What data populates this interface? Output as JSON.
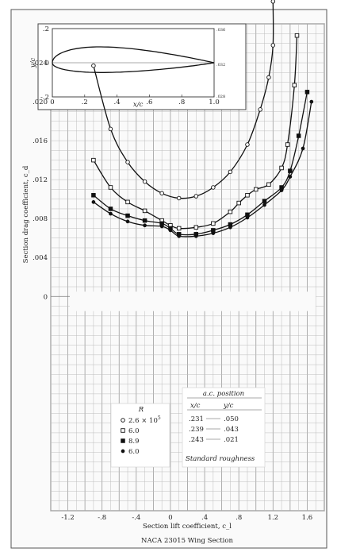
{
  "chart_data": {
    "type": "line",
    "title": "NACA 23015 Wing Section",
    "xlabel": "Section lift coefficient, c_l",
    "ylabel": "Section drag coefficient, c_d",
    "xlim": [
      -1.4,
      1.8
    ],
    "ylim": [
      -0.022,
      0.028
    ],
    "x_ticks": [
      "-1.2",
      "-.8",
      "-.4",
      "0",
      ".4",
      ".8",
      "1.2",
      "1.6"
    ],
    "x_tick_values": [
      -1.2,
      -0.8,
      -0.4,
      0,
      0.4,
      0.8,
      1.2,
      1.6
    ],
    "y_ticks": [
      ".024",
      ".020",
      ".016",
      ".012",
      ".008",
      ".004",
      "0"
    ],
    "y_tick_values": [
      0.024,
      0.02,
      0.016,
      0.012,
      0.008,
      0.004,
      0
    ],
    "grid": true,
    "series": [
      {
        "name": "2.6 × 10^5",
        "marker": "hollow-circle",
        "points": [
          [
            -0.9,
            0.0237
          ],
          [
            -0.7,
            0.0172
          ],
          [
            -0.5,
            0.0138
          ],
          [
            -0.3,
            0.0118
          ],
          [
            -0.1,
            0.0106
          ],
          [
            0.1,
            0.0101
          ],
          [
            0.3,
            0.0103
          ],
          [
            0.5,
            0.0112
          ],
          [
            0.7,
            0.0128
          ],
          [
            0.9,
            0.0156
          ],
          [
            1.05,
            0.0192
          ],
          [
            1.15,
            0.0225
          ],
          [
            1.2,
            0.0258
          ],
          [
            1.2,
            0.0303
          ]
        ],
        "marker_color": "#333"
      },
      {
        "name": "6.0",
        "marker": "hollow-square",
        "points": [
          [
            -0.9,
            0.014
          ],
          [
            -0.7,
            0.0112
          ],
          [
            -0.5,
            0.0097
          ],
          [
            -0.3,
            0.0088
          ],
          [
            -0.1,
            0.0078
          ],
          [
            0.0,
            0.0073
          ],
          [
            0.1,
            0.007
          ],
          [
            0.3,
            0.0071
          ],
          [
            0.5,
            0.0075
          ],
          [
            0.7,
            0.0087
          ],
          [
            0.8,
            0.0096
          ],
          [
            0.9,
            0.0104
          ],
          [
            1.0,
            0.011
          ],
          [
            1.15,
            0.0115
          ],
          [
            1.3,
            0.0132
          ],
          [
            1.37,
            0.0156
          ],
          [
            1.45,
            0.0217
          ],
          [
            1.48,
            0.0268
          ]
        ],
        "marker_color": "#333"
      },
      {
        "name": "8.9",
        "marker": "filled-square",
        "points": [
          [
            -0.9,
            0.0104
          ],
          [
            -0.7,
            0.009
          ],
          [
            -0.5,
            0.0083
          ],
          [
            -0.3,
            0.0078
          ],
          [
            -0.1,
            0.0075
          ],
          [
            0.0,
            0.007
          ],
          [
            0.1,
            0.0064
          ],
          [
            0.3,
            0.0064
          ],
          [
            0.5,
            0.0068
          ],
          [
            0.7,
            0.0074
          ],
          [
            0.9,
            0.0084
          ],
          [
            1.1,
            0.0098
          ],
          [
            1.3,
            0.0112
          ],
          [
            1.4,
            0.0129
          ],
          [
            1.5,
            0.0165
          ],
          [
            1.6,
            0.021
          ]
        ],
        "marker_color": "#111"
      },
      {
        "name": "6.0",
        "marker": "filled-circle",
        "points": [
          [
            -0.9,
            0.0097
          ],
          [
            -0.7,
            0.0085
          ],
          [
            -0.5,
            0.0077
          ],
          [
            -0.3,
            0.0073
          ],
          [
            -0.1,
            0.0072
          ],
          [
            0.0,
            0.0068
          ],
          [
            0.1,
            0.0062
          ],
          [
            0.3,
            0.0062
          ],
          [
            0.5,
            0.0065
          ],
          [
            0.7,
            0.0071
          ],
          [
            0.9,
            0.0081
          ],
          [
            1.1,
            0.0094
          ],
          [
            1.3,
            0.0109
          ],
          [
            1.4,
            0.0123
          ],
          [
            1.55,
            0.0152
          ],
          [
            1.65,
            0.02
          ]
        ],
        "marker_color": "#111"
      }
    ],
    "legend": {
      "title": "R",
      "labels": [
        "2.6 × 10^5",
        "6.0",
        "8.9",
        "6.0"
      ]
    },
    "ac_table": {
      "title": "a.c. position",
      "headers": [
        "x/c",
        "y/c"
      ],
      "rows": [
        [
          ".231",
          ".050"
        ],
        [
          ".239",
          ".043"
        ],
        [
          ".243",
          ".021"
        ]
      ],
      "note": "Standard roughness"
    },
    "inset": {
      "type": "airfoil",
      "xlabel": "x/c",
      "ylabel": "y/c",
      "x_ticks": [
        "0",
        ".2",
        ".4",
        ".6",
        ".8",
        "1.0"
      ],
      "y_ticks": [
        ".2",
        "0",
        "-.2"
      ],
      "right_ticks": [
        ".036",
        ".032",
        ".028"
      ],
      "max_thickness": 0.15
    }
  }
}
